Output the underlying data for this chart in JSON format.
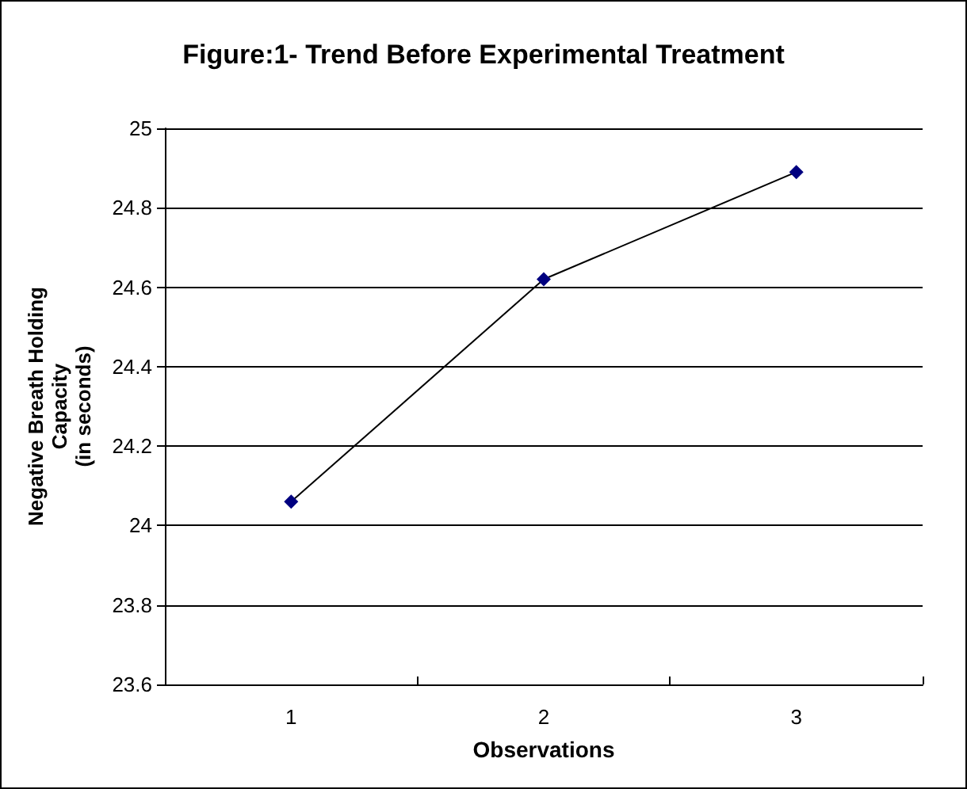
{
  "chart_data": {
    "type": "line",
    "title": "Figure:1- Trend Before Experimental Treatment",
    "xlabel": "Observations",
    "ylabel": "Negative Breath Holding\nCapacity\n(in seconds)",
    "categories": [
      "1",
      "2",
      "3"
    ],
    "series": [
      {
        "color": "#000080",
        "values": [
          24.06,
          24.62,
          24.89
        ]
      }
    ],
    "ylim": [
      23.6,
      25
    ],
    "yticks": [
      23.6,
      23.8,
      24,
      24.2,
      24.4,
      24.6,
      24.8,
      25
    ],
    "grid": "y",
    "marker": "diamond",
    "line_style": "solid",
    "legend": false
  }
}
